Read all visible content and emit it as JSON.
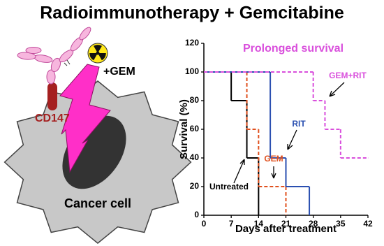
{
  "header": {
    "title": "Radioimmunotherapy + Gemcitabine"
  },
  "diagram": {
    "drug_label": "+GEM",
    "antigen_label": "CD147",
    "cell_label": "Cancer cell"
  },
  "chart_data": {
    "type": "line",
    "step": true,
    "x_label": "Days after treatment",
    "y_label": "Survival (%)",
    "annotation": "Prolonged survival",
    "xlim": [
      0,
      42
    ],
    "xticks": [
      0,
      7,
      14,
      21,
      28,
      35,
      42
    ],
    "ylim": [
      0,
      120
    ],
    "yticks": [
      0,
      20,
      40,
      60,
      80,
      100,
      120
    ],
    "series": [
      {
        "name": "Untreated",
        "color": "#000000",
        "dashed": false,
        "x": [
          0,
          7,
          11,
          14
        ],
        "values": [
          100,
          80,
          40,
          0
        ]
      },
      {
        "name": "GEM",
        "color": "#e0501e",
        "dashed": true,
        "x": [
          0,
          11,
          14,
          21
        ],
        "values": [
          100,
          60,
          20,
          0
        ]
      },
      {
        "name": "RIT",
        "color": "#2a4fb0",
        "dashed": false,
        "x": [
          0,
          17,
          21,
          27
        ],
        "values": [
          100,
          40,
          20,
          0
        ]
      },
      {
        "name": "GEM+RIT",
        "color": "#d94fdc",
        "dashed": true,
        "x": [
          0,
          28,
          31,
          35,
          42
        ],
        "values": [
          100,
          80,
          60,
          40,
          40
        ]
      }
    ]
  }
}
